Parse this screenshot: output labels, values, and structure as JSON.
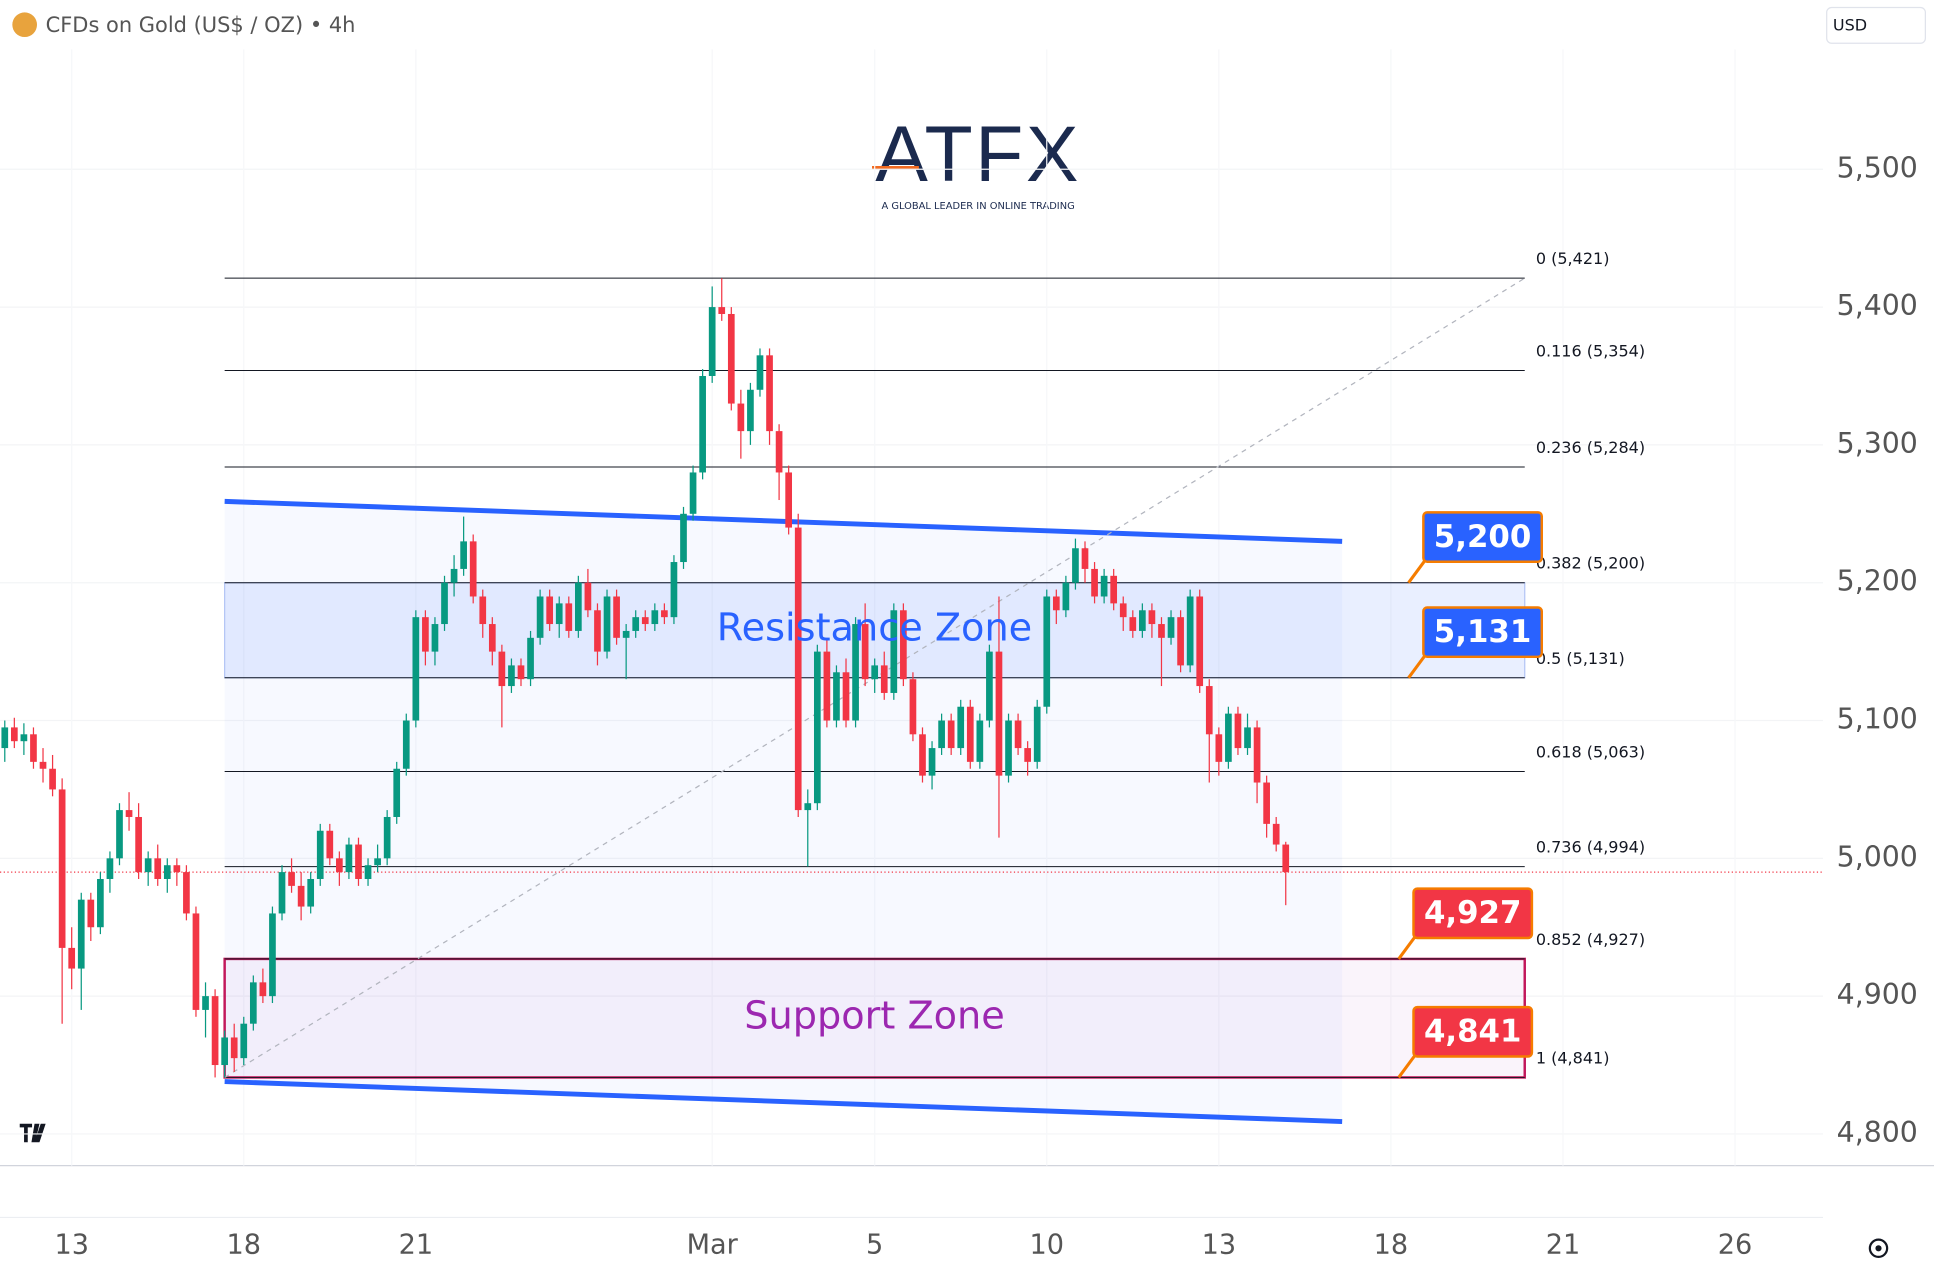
{
  "chart_data": {
    "type": "candlestick",
    "title": "CFDs on Gold (US$ / OZ) • 4h",
    "currency": "USD",
    "logo": "ATFX",
    "logo_tagline": "A GLOBAL LEADER IN ONLINE TRADING",
    "up_color": "#089981",
    "down_color": "#f23645",
    "xlim": [
      -0.5,
      190.2
    ],
    "ylim": [
      4777,
      5587
    ],
    "grid": true,
    "xticks": [
      {
        "value": 7,
        "label": "13"
      },
      {
        "value": 25,
        "label": "18"
      },
      {
        "value": 43,
        "label": "21"
      },
      {
        "value": 74,
        "label": "Mar"
      },
      {
        "value": 91,
        "label": "5"
      },
      {
        "value": 109,
        "label": "10"
      },
      {
        "value": 127,
        "label": "13"
      },
      {
        "value": 145,
        "label": "18"
      },
      {
        "value": 163,
        "label": "21"
      },
      {
        "value": 181,
        "label": "26"
      }
    ],
    "yticks": [
      {
        "value": 4800,
        "label": "4,800"
      },
      {
        "value": 4900,
        "label": "4,900"
      },
      {
        "value": 5000,
        "label": "5,000"
      },
      {
        "value": 5100,
        "label": "5,100"
      },
      {
        "value": 5200,
        "label": "5,200"
      },
      {
        "value": 5300,
        "label": "5,300"
      },
      {
        "value": 5400,
        "label": "5,400"
      },
      {
        "value": 5500,
        "label": "5,500"
      }
    ],
    "candles": [
      [
        5080,
        5100,
        5070,
        5095
      ],
      [
        5095,
        5102,
        5080,
        5085
      ],
      [
        5085,
        5098,
        5075,
        5090
      ],
      [
        5090,
        5095,
        5065,
        5070
      ],
      [
        5070,
        5080,
        5055,
        5065
      ],
      [
        5065,
        5075,
        5045,
        5050
      ],
      [
        5050,
        5058,
        4880,
        4935
      ],
      [
        4935,
        4950,
        4905,
        4920
      ],
      [
        4920,
        4975,
        4890,
        4970
      ],
      [
        4970,
        4975,
        4940,
        4950
      ],
      [
        4950,
        4990,
        4945,
        4985
      ],
      [
        4985,
        5005,
        4975,
        5000
      ],
      [
        5000,
        5040,
        4995,
        5035
      ],
      [
        5035,
        5048,
        5020,
        5030
      ],
      [
        5030,
        5040,
        4985,
        4990
      ],
      [
        4990,
        5005,
        4980,
        5000
      ],
      [
        5000,
        5010,
        4980,
        4985
      ],
      [
        4985,
        5000,
        4975,
        4995
      ],
      [
        4995,
        5000,
        4980,
        4990
      ],
      [
        4990,
        4995,
        4955,
        4960
      ],
      [
        4960,
        4965,
        4885,
        4890
      ],
      [
        4890,
        4910,
        4870,
        4900
      ],
      [
        4900,
        4905,
        4841,
        4850
      ],
      [
        4850,
        4875,
        4841,
        4870
      ],
      [
        4870,
        4880,
        4845,
        4855
      ],
      [
        4855,
        4885,
        4850,
        4880
      ],
      [
        4880,
        4915,
        4875,
        4910
      ],
      [
        4910,
        4920,
        4895,
        4900
      ],
      [
        4900,
        4965,
        4895,
        4960
      ],
      [
        4960,
        4995,
        4955,
        4990
      ],
      [
        4990,
        5000,
        4975,
        4980
      ],
      [
        4980,
        4990,
        4955,
        4965
      ],
      [
        4965,
        4990,
        4960,
        4985
      ],
      [
        4985,
        5025,
        4980,
        5020
      ],
      [
        5020,
        5025,
        4995,
        5000
      ],
      [
        5000,
        5005,
        4980,
        4990
      ],
      [
        4990,
        5015,
        4985,
        5010
      ],
      [
        5010,
        5015,
        4980,
        4985
      ],
      [
        4985,
        5000,
        4980,
        4995
      ],
      [
        4995,
        5010,
        4990,
        5000
      ],
      [
        5000,
        5035,
        4995,
        5030
      ],
      [
        5030,
        5070,
        5025,
        5065
      ],
      [
        5065,
        5105,
        5060,
        5100
      ],
      [
        5100,
        5180,
        5095,
        5175
      ],
      [
        5175,
        5180,
        5140,
        5150
      ],
      [
        5150,
        5175,
        5140,
        5170
      ],
      [
        5170,
        5205,
        5165,
        5200
      ],
      [
        5200,
        5220,
        5190,
        5210
      ],
      [
        5210,
        5248,
        5205,
        5230
      ],
      [
        5230,
        5235,
        5185,
        5190
      ],
      [
        5190,
        5195,
        5160,
        5170
      ],
      [
        5170,
        5175,
        5140,
        5150
      ],
      [
        5150,
        5155,
        5095,
        5125
      ],
      [
        5125,
        5145,
        5120,
        5140
      ],
      [
        5140,
        5145,
        5125,
        5130
      ],
      [
        5130,
        5165,
        5125,
        5160
      ],
      [
        5160,
        5195,
        5155,
        5190
      ],
      [
        5190,
        5195,
        5165,
        5170
      ],
      [
        5170,
        5190,
        5160,
        5185
      ],
      [
        5185,
        5190,
        5160,
        5165
      ],
      [
        5165,
        5205,
        5160,
        5200
      ],
      [
        5200,
        5210,
        5175,
        5180
      ],
      [
        5180,
        5185,
        5140,
        5150
      ],
      [
        5150,
        5195,
        5145,
        5190
      ],
      [
        5190,
        5195,
        5155,
        5160
      ],
      [
        5160,
        5170,
        5130,
        5165
      ],
      [
        5165,
        5180,
        5160,
        5175
      ],
      [
        5175,
        5180,
        5165,
        5170
      ],
      [
        5170,
        5185,
        5165,
        5180
      ],
      [
        5180,
        5185,
        5170,
        5175
      ],
      [
        5175,
        5220,
        5170,
        5215
      ],
      [
        5215,
        5255,
        5210,
        5250
      ],
      [
        5250,
        5285,
        5245,
        5280
      ],
      [
        5280,
        5355,
        5275,
        5350
      ],
      [
        5350,
        5415,
        5345,
        5400
      ],
      [
        5400,
        5421,
        5390,
        5395
      ],
      [
        5395,
        5400,
        5325,
        5330
      ],
      [
        5330,
        5340,
        5290,
        5310
      ],
      [
        5310,
        5345,
        5300,
        5340
      ],
      [
        5340,
        5370,
        5335,
        5365
      ],
      [
        5365,
        5370,
        5300,
        5310
      ],
      [
        5310,
        5315,
        5260,
        5280
      ],
      [
        5280,
        5285,
        5235,
        5240
      ],
      [
        5240,
        5250,
        5030,
        5035
      ],
      [
        5035,
        5050,
        4994,
        5040
      ],
      [
        5040,
        5155,
        5035,
        5150
      ],
      [
        5150,
        5160,
        5095,
        5100
      ],
      [
        5100,
        5140,
        5095,
        5135
      ],
      [
        5135,
        5145,
        5095,
        5100
      ],
      [
        5100,
        5175,
        5095,
        5170
      ],
      [
        5170,
        5185,
        5125,
        5130
      ],
      [
        5130,
        5145,
        5120,
        5140
      ],
      [
        5140,
        5150,
        5115,
        5120
      ],
      [
        5120,
        5185,
        5115,
        5180
      ],
      [
        5180,
        5185,
        5125,
        5130
      ],
      [
        5130,
        5135,
        5085,
        5090
      ],
      [
        5090,
        5095,
        5055,
        5060
      ],
      [
        5060,
        5085,
        5050,
        5080
      ],
      [
        5080,
        5105,
        5075,
        5100
      ],
      [
        5100,
        5105,
        5075,
        5080
      ],
      [
        5080,
        5115,
        5075,
        5110
      ],
      [
        5110,
        5115,
        5065,
        5070
      ],
      [
        5070,
        5105,
        5065,
        5100
      ],
      [
        5100,
        5155,
        5095,
        5150
      ],
      [
        5150,
        5190,
        5015,
        5060
      ],
      [
        5060,
        5105,
        5055,
        5100
      ],
      [
        5100,
        5105,
        5075,
        5080
      ],
      [
        5080,
        5085,
        5060,
        5070
      ],
      [
        5070,
        5115,
        5065,
        5110
      ],
      [
        5110,
        5195,
        5105,
        5190
      ],
      [
        5190,
        5195,
        5170,
        5180
      ],
      [
        5180,
        5205,
        5175,
        5200
      ],
      [
        5200,
        5232,
        5195,
        5225
      ],
      [
        5225,
        5230,
        5200,
        5210
      ],
      [
        5210,
        5215,
        5185,
        5190
      ],
      [
        5190,
        5210,
        5185,
        5205
      ],
      [
        5205,
        5210,
        5180,
        5185
      ],
      [
        5185,
        5190,
        5165,
        5175
      ],
      [
        5175,
        5180,
        5160,
        5165
      ],
      [
        5165,
        5185,
        5160,
        5180
      ],
      [
        5180,
        5185,
        5160,
        5170
      ],
      [
        5170,
        5175,
        5125,
        5160
      ],
      [
        5160,
        5180,
        5155,
        5175
      ],
      [
        5175,
        5180,
        5135,
        5140
      ],
      [
        5140,
        5195,
        5135,
        5190
      ],
      [
        5190,
        5195,
        5120,
        5125
      ],
      [
        5125,
        5130,
        5055,
        5090
      ],
      [
        5090,
        5095,
        5060,
        5070
      ],
      [
        5070,
        5110,
        5065,
        5105
      ],
      [
        5105,
        5110,
        5075,
        5080
      ],
      [
        5080,
        5105,
        5075,
        5095
      ],
      [
        5095,
        5100,
        5040,
        5055
      ],
      [
        5055,
        5060,
        5015,
        5025
      ],
      [
        5025,
        5030,
        5005,
        5010
      ],
      [
        5010,
        5012,
        4966,
        4990
      ]
    ],
    "last_price": 4990,
    "fib_x": [
      23,
      159
    ],
    "fib_levels": [
      {
        "value": 5421,
        "label": "0 (5,421)"
      },
      {
        "value": 5354,
        "label": "0.116 (5,354)"
      },
      {
        "value": 5284,
        "label": "0.236 (5,284)"
      },
      {
        "value": 5200,
        "label": "0.382 (5,200)"
      },
      {
        "value": 5131,
        "label": "0.5 (5,131)"
      },
      {
        "value": 5063,
        "label": "0.618 (5,063)"
      },
      {
        "value": 4994,
        "label": "0.736 (4,994)"
      },
      {
        "value": 4927,
        "label": "0.852 (4,927)"
      },
      {
        "value": 4841,
        "label": "1 (4,841)"
      }
    ],
    "zones": [
      {
        "label": "Resistance Zone",
        "range": [
          5131,
          5200
        ],
        "x": [
          23,
          159
        ],
        "color": "#2962ff"
      },
      {
        "label": "Support Zone",
        "range": [
          4841,
          4927
        ],
        "x": [
          23,
          159
        ],
        "color": "#9c27b0"
      }
    ],
    "trendlines": [
      {
        "x": [
          23,
          139.9
        ],
        "y": [
          5259,
          5230
        ],
        "color": "#2962ff"
      },
      {
        "x": [
          23,
          139.9
        ],
        "y": [
          4838,
          4809
        ],
        "color": "#2962ff"
      },
      {
        "x": [
          23,
          159
        ],
        "y": [
          4841,
          5421
        ],
        "color": "#b2b5be",
        "dashed": true
      }
    ],
    "price_tags": [
      {
        "value": 5200,
        "label": "5,200",
        "color": "#2962ff"
      },
      {
        "value": 5131,
        "label": "5,131",
        "color": "#2962ff"
      },
      {
        "value": 4927,
        "label": "4,927",
        "color": "#f23645"
      },
      {
        "value": 4841,
        "label": "4,841",
        "color": "#f23645"
      }
    ]
  }
}
